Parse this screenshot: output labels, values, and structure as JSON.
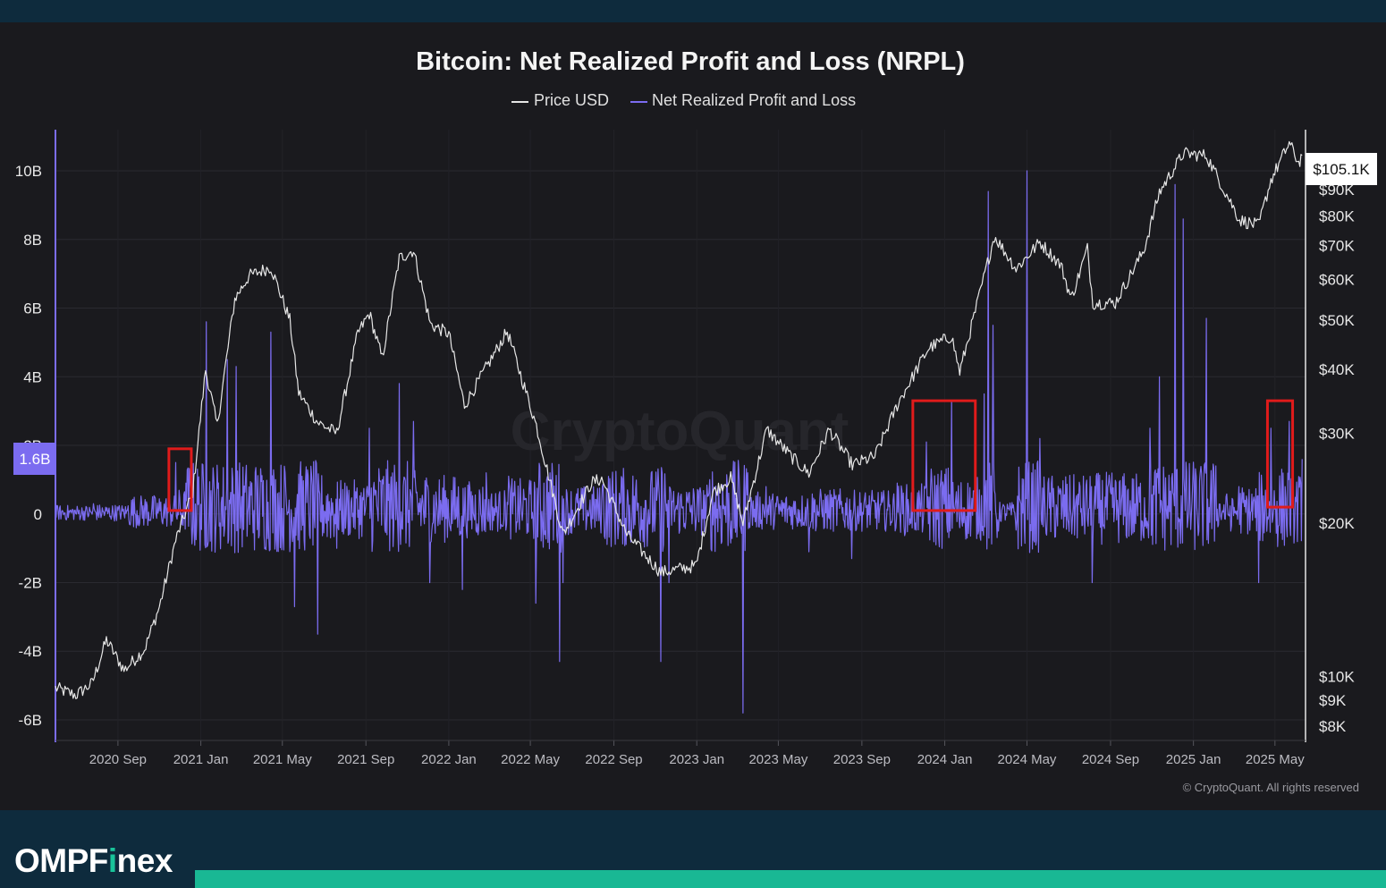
{
  "colors": {
    "panel_bg": "#1a1a1e",
    "price_line": "#e6e6e6",
    "nrpl_line": "#7b6cf0",
    "highlight_box": "#e01b1b",
    "brand_accent": "#19c49a",
    "footer_bg": "#0e2b3d"
  },
  "brand": {
    "prefix": "OMPF",
    "highlight": "i",
    "suffix": "nex"
  },
  "chart_data": {
    "type": "line",
    "title": "Bitcoin: Net Realized Profit and Loss (NRPL)",
    "legend": {
      "placement": "top-center",
      "items": [
        {
          "name": "Price USD",
          "color": "#e6e6e6"
        },
        {
          "name": "Net Realized Profit and Loss",
          "color": "#7b6cf0"
        }
      ]
    },
    "watermark": "CryptoQuant",
    "copyright": "© CryptoQuant. All rights reserved",
    "x_tick_labels": [
      "2020 Sep",
      "2021 Jan",
      "2021 May",
      "2021 Sep",
      "2022 Jan",
      "2022 May",
      "2022 Sep",
      "2023 Jan",
      "2023 May",
      "2023 Sep",
      "2024 Jan",
      "2024 May",
      "2024 Sep",
      "2025 Jan",
      "2025 May"
    ],
    "x_range": [
      "2020-06-01",
      "2025-06-15"
    ],
    "left_axis": {
      "tick_labels": [
        "10B",
        "8B",
        "6B",
        "4B",
        "2B",
        "0",
        "-2B",
        "-4B",
        "-6B"
      ],
      "ylim": [
        -6.6,
        11.2
      ],
      "current_label": "1.6B"
    },
    "right_axis": {
      "scale": "log",
      "tick_labels": [
        "$100K",
        "$90K",
        "$80K",
        "$70K",
        "$60K",
        "$50K",
        "$40K",
        "$30K",
        "$20K",
        "$10K",
        "$9K",
        "$8K"
      ],
      "ylim": [
        7500,
        118000
      ],
      "current_label": "$105.1K"
    },
    "grid": true,
    "series": [
      {
        "name": "Price USD",
        "axis": "right",
        "points": [
          [
            "2020-06-01",
            9500
          ],
          [
            "2020-07-01",
            9200
          ],
          [
            "2020-07-25",
            9700
          ],
          [
            "2020-08-15",
            11800
          ],
          [
            "2020-09-10",
            10300
          ],
          [
            "2020-10-10",
            11300
          ],
          [
            "2020-11-01",
            13700
          ],
          [
            "2020-11-25",
            18500
          ],
          [
            "2020-12-20",
            23000
          ],
          [
            "2021-01-08",
            40000
          ],
          [
            "2021-01-25",
            31000
          ],
          [
            "2021-02-20",
            55000
          ],
          [
            "2021-03-13",
            61000
          ],
          [
            "2021-04-14",
            63500
          ],
          [
            "2021-05-12",
            50000
          ],
          [
            "2021-05-25",
            36000
          ],
          [
            "2021-06-22",
            31500
          ],
          [
            "2021-07-20",
            30000
          ],
          [
            "2021-08-20",
            47000
          ],
          [
            "2021-09-06",
            51500
          ],
          [
            "2021-09-25",
            42000
          ],
          [
            "2021-10-20",
            66000
          ],
          [
            "2021-11-10",
            68500
          ],
          [
            "2021-12-05",
            49000
          ],
          [
            "2022-01-01",
            47000
          ],
          [
            "2022-01-24",
            34000
          ],
          [
            "2022-03-28",
            47500
          ],
          [
            "2022-05-10",
            31000
          ],
          [
            "2022-06-18",
            19000
          ],
          [
            "2022-07-30",
            24000
          ],
          [
            "2022-08-14",
            24400
          ],
          [
            "2022-09-20",
            19000
          ],
          [
            "2022-11-09",
            16000
          ],
          [
            "2022-12-31",
            16500
          ],
          [
            "2023-01-25",
            23000
          ],
          [
            "2023-02-20",
            24500
          ],
          [
            "2023-03-10",
            20000
          ],
          [
            "2023-04-14",
            30500
          ],
          [
            "2023-05-20",
            27000
          ],
          [
            "2023-06-15",
            25000
          ],
          [
            "2023-07-15",
            30500
          ],
          [
            "2023-08-18",
            26000
          ],
          [
            "2023-09-20",
            27000
          ],
          [
            "2023-10-25",
            34500
          ],
          [
            "2023-12-08",
            44000
          ],
          [
            "2024-01-11",
            46500
          ],
          [
            "2024-01-23",
            39500
          ],
          [
            "2024-02-15",
            52000
          ],
          [
            "2024-03-14",
            73000
          ],
          [
            "2024-04-15",
            63000
          ],
          [
            "2024-05-20",
            71000
          ],
          [
            "2024-06-20",
            64000
          ],
          [
            "2024-07-05",
            55000
          ],
          [
            "2024-07-29",
            69000
          ],
          [
            "2024-08-06",
            54000
          ],
          [
            "2024-09-08",
            54000
          ],
          [
            "2024-10-20",
            68500
          ],
          [
            "2024-11-12",
            89000
          ],
          [
            "2024-12-17",
            106000
          ],
          [
            "2025-01-20",
            105000
          ],
          [
            "2025-02-27",
            84000
          ],
          [
            "2025-03-10",
            78500
          ],
          [
            "2025-04-07",
            76500
          ],
          [
            "2025-04-25",
            94000
          ],
          [
            "2025-05-22",
            111000
          ],
          [
            "2025-06-05",
            101500
          ],
          [
            "2025-06-10",
            105100
          ]
        ]
      },
      {
        "name": "Net Realized Profit and Loss",
        "axis": "left",
        "baseline": 0.0,
        "points": [
          [
            "2020-06-01",
            0.0
          ],
          [
            "2020-07-27",
            0.3
          ],
          [
            "2020-09-15",
            0.1
          ],
          [
            "2020-11-25",
            1.5
          ],
          [
            "2020-12-10",
            0.9
          ],
          [
            "2021-01-09",
            5.6
          ],
          [
            "2021-02-09",
            4.5
          ],
          [
            "2021-02-22",
            4.3
          ],
          [
            "2021-04-14",
            5.3
          ],
          [
            "2021-05-19",
            -2.7
          ],
          [
            "2021-06-22",
            -3.5
          ],
          [
            "2021-07-20",
            -1.0
          ],
          [
            "2021-09-06",
            2.5
          ],
          [
            "2021-10-20",
            3.8
          ],
          [
            "2021-11-10",
            2.7
          ],
          [
            "2021-12-04",
            -2.0
          ],
          [
            "2022-01-21",
            -2.2
          ],
          [
            "2022-02-25",
            1.2
          ],
          [
            "2022-03-30",
            1.1
          ],
          [
            "2022-05-09",
            -2.6
          ],
          [
            "2022-06-13",
            -4.3
          ],
          [
            "2022-06-18",
            -2.0
          ],
          [
            "2022-08-15",
            0.8
          ],
          [
            "2022-11-09",
            -4.3
          ],
          [
            "2022-11-21",
            -2.0
          ],
          [
            "2023-01-20",
            1.0
          ],
          [
            "2023-03-10",
            -5.8
          ],
          [
            "2023-03-17",
            1.2
          ],
          [
            "2023-04-13",
            0.8
          ],
          [
            "2023-06-15",
            -1.1
          ],
          [
            "2023-08-17",
            -1.3
          ],
          [
            "2023-10-23",
            0.9
          ],
          [
            "2023-12-05",
            2.1
          ],
          [
            "2024-01-11",
            3.3
          ],
          [
            "2024-01-23",
            -0.4
          ],
          [
            "2024-02-28",
            3.5
          ],
          [
            "2024-03-05",
            9.4
          ],
          [
            "2024-03-12",
            5.5
          ],
          [
            "2024-03-20",
            -0.5
          ],
          [
            "2024-04-14",
            -0.2
          ],
          [
            "2024-05-01",
            10.0
          ],
          [
            "2024-05-20",
            2.2
          ],
          [
            "2024-08-05",
            -2.0
          ],
          [
            "2024-10-29",
            2.5
          ],
          [
            "2024-11-12",
            4.0
          ],
          [
            "2024-12-05",
            9.6
          ],
          [
            "2024-12-17",
            8.6
          ],
          [
            "2025-01-20",
            5.7
          ],
          [
            "2025-02-03",
            1.4
          ],
          [
            "2025-02-25",
            -0.5
          ],
          [
            "2025-03-09",
            0.8
          ],
          [
            "2025-04-07",
            -2.0
          ],
          [
            "2025-04-25",
            2.5
          ],
          [
            "2025-05-22",
            2.7
          ],
          [
            "2025-06-10",
            1.6
          ]
        ]
      }
    ],
    "annotations": [
      {
        "type": "rectangle",
        "color": "#e01b1b",
        "x_range": [
          "2020-11-15",
          "2020-12-18"
        ],
        "y_range": [
          0.1,
          1.9
        ]
      },
      {
        "type": "rectangle",
        "color": "#e01b1b",
        "x_range": [
          "2023-11-15",
          "2024-02-15"
        ],
        "y_range": [
          0.1,
          3.3
        ]
      },
      {
        "type": "rectangle",
        "color": "#e01b1b",
        "x_range": [
          "2025-04-20",
          "2025-05-27"
        ],
        "y_range": [
          0.2,
          3.3
        ]
      }
    ]
  }
}
